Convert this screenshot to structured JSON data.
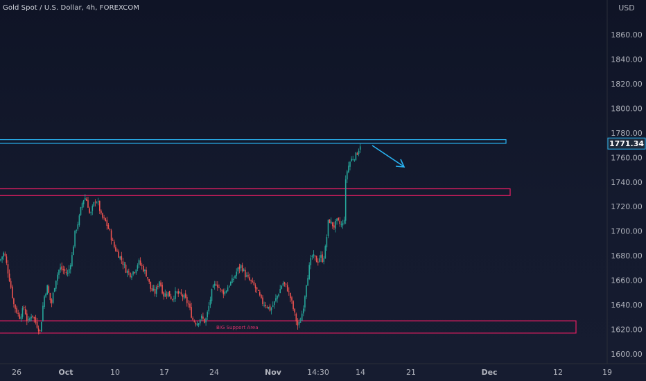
{
  "title": "Gold Spot / U.S. Dollar, 4h, FOREXCOM",
  "currency": "USD",
  "last_price": "1771.34",
  "colors": {
    "background": "#131722",
    "up": "#26a69a",
    "down": "#ef5350",
    "resistance": "#29b6f6",
    "support": "#e91e63",
    "price_tag_bg": "#1e222d"
  },
  "chart_data": {
    "type": "candlestick",
    "instrument": "Gold Spot / U.S. Dollar",
    "interval": "4h",
    "source": "FOREXCOM",
    "ylim": [
      1595,
      1875
    ],
    "y_ticks": [
      1860,
      1840,
      1820,
      1800,
      1780,
      1760,
      1740,
      1720,
      1700,
      1680,
      1660,
      1640,
      1620,
      1600
    ],
    "y_tick_labels": [
      "1860.00",
      "1840.00",
      "1820.00",
      "1800.00",
      "1780.00",
      "1760.00",
      "1740.00",
      "1720.00",
      "1700.00",
      "1680.00",
      "1660.00",
      "1640.00",
      "1620.00",
      "1600.00"
    ],
    "x_tick_labels": [
      "26",
      "Oct",
      "10",
      "17",
      "24",
      "Nov",
      "14:30",
      "14",
      "21",
      "Dec",
      "12",
      "19"
    ],
    "x_tick_bold": [
      "Oct",
      "Nov",
      "Dec"
    ],
    "price_path": [
      [
        0,
        1676
      ],
      [
        6,
        1683
      ],
      [
        14,
        1660
      ],
      [
        20,
        1640
      ],
      [
        28,
        1630
      ],
      [
        35,
        1638
      ],
      [
        40,
        1625
      ],
      [
        46,
        1633
      ],
      [
        52,
        1625
      ],
      [
        58,
        1618
      ],
      [
        63,
        1645
      ],
      [
        68,
        1655
      ],
      [
        74,
        1640
      ],
      [
        80,
        1660
      ],
      [
        86,
        1670
      ],
      [
        92,
        1668
      ],
      [
        98,
        1665
      ],
      [
        104,
        1680
      ],
      [
        108,
        1698
      ],
      [
        114,
        1710
      ],
      [
        118,
        1722
      ],
      [
        122,
        1728
      ],
      [
        126,
        1724
      ],
      [
        130,
        1712
      ],
      [
        134,
        1720
      ],
      [
        138,
        1726
      ],
      [
        142,
        1722
      ],
      [
        146,
        1712
      ],
      [
        152,
        1708
      ],
      [
        158,
        1700
      ],
      [
        164,
        1688
      ],
      [
        170,
        1682
      ],
      [
        176,
        1676
      ],
      [
        182,
        1668
      ],
      [
        188,
        1665
      ],
      [
        194,
        1668
      ],
      [
        200,
        1675
      ],
      [
        206,
        1670
      ],
      [
        212,
        1664
      ],
      [
        218,
        1652
      ],
      [
        224,
        1650
      ],
      [
        230,
        1660
      ],
      [
        236,
        1648
      ],
      [
        242,
        1650
      ],
      [
        248,
        1645
      ],
      [
        254,
        1650
      ],
      [
        260,
        1648
      ],
      [
        266,
        1646
      ],
      [
        272,
        1640
      ],
      [
        278,
        1628
      ],
      [
        284,
        1625
      ],
      [
        290,
        1630
      ],
      [
        296,
        1626
      ],
      [
        300,
        1635
      ],
      [
        306,
        1652
      ],
      [
        312,
        1658
      ],
      [
        318,
        1652
      ],
      [
        324,
        1650
      ],
      [
        330,
        1656
      ],
      [
        336,
        1660
      ],
      [
        342,
        1668
      ],
      [
        348,
        1672
      ],
      [
        354,
        1664
      ],
      [
        360,
        1660
      ],
      [
        366,
        1656
      ],
      [
        372,
        1650
      ],
      [
        378,
        1642
      ],
      [
        384,
        1640
      ],
      [
        390,
        1636
      ],
      [
        396,
        1642
      ],
      [
        402,
        1650
      ],
      [
        408,
        1658
      ],
      [
        414,
        1654
      ],
      [
        420,
        1644
      ],
      [
        426,
        1630
      ],
      [
        430,
        1622
      ],
      [
        434,
        1628
      ],
      [
        438,
        1640
      ],
      [
        442,
        1658
      ],
      [
        446,
        1670
      ],
      [
        450,
        1680
      ],
      [
        454,
        1678
      ],
      [
        458,
        1675
      ],
      [
        462,
        1680
      ],
      [
        466,
        1676
      ],
      [
        470,
        1688
      ],
      [
        474,
        1710
      ],
      [
        478,
        1706
      ],
      [
        482,
        1704
      ],
      [
        486,
        1708
      ],
      [
        490,
        1706
      ],
      [
        494,
        1704
      ],
      [
        497,
        1712
      ],
      [
        499,
        1745
      ],
      [
        502,
        1752
      ],
      [
        506,
        1758
      ],
      [
        510,
        1760
      ],
      [
        514,
        1762
      ],
      [
        517,
        1766
      ],
      [
        520,
        1771
      ]
    ],
    "annotations": [
      {
        "type": "resistance-zone",
        "color": "#29b6f6",
        "y_low": 1771.5,
        "y_high": 1774.5
      },
      {
        "type": "support-zone",
        "color": "#e91e63",
        "y_low": 1729,
        "y_high": 1734.5
      },
      {
        "type": "support-zone",
        "color": "#e91e63",
        "y_low": 1617,
        "y_high": 1627,
        "label": "BIG Support Area"
      },
      {
        "type": "arrow",
        "color": "#29b6f6",
        "direction": "down-right"
      }
    ],
    "grid": false
  }
}
